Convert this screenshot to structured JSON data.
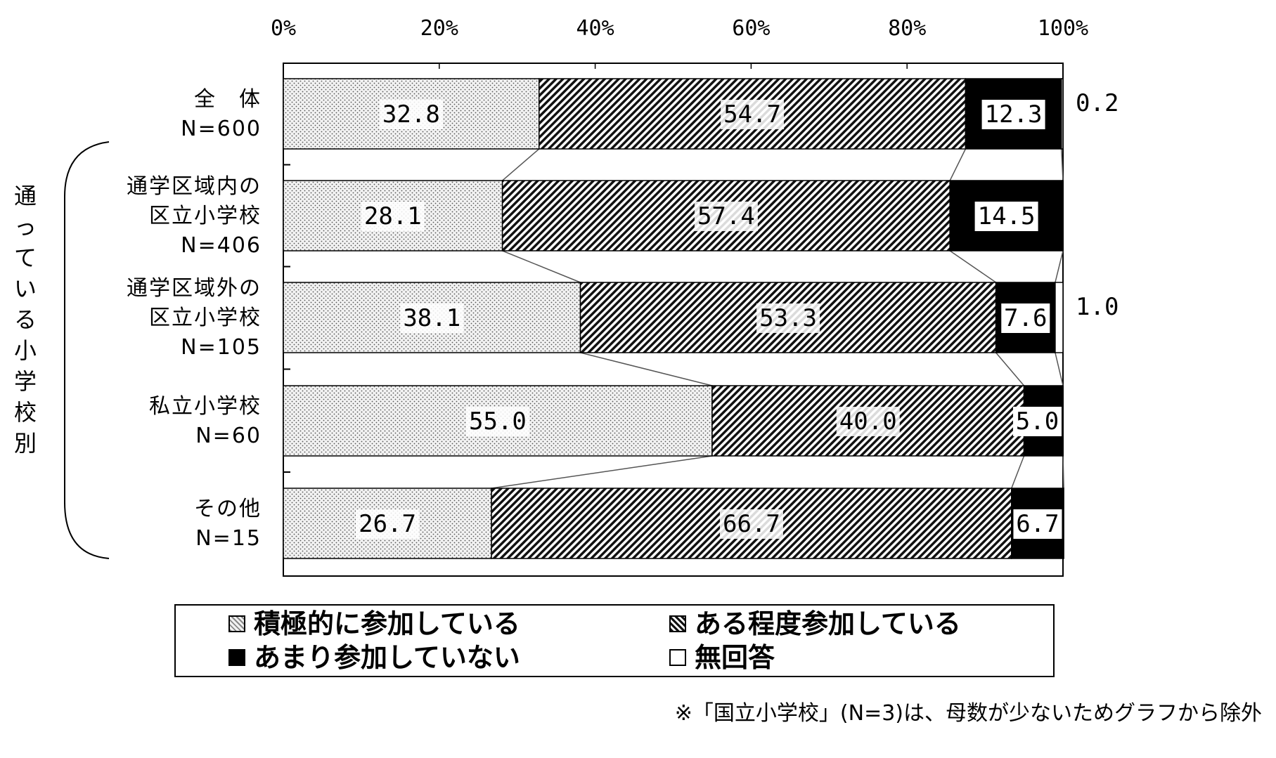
{
  "chart_data": {
    "type": "bar",
    "orientation": "horizontal-stacked-100",
    "x_ticks": [
      "0%",
      "20%",
      "40%",
      "60%",
      "80%",
      "100%"
    ],
    "xlim": [
      0,
      100
    ],
    "categories": [
      {
        "lines": [
          "全　体",
          "N=600"
        ]
      },
      {
        "lines": [
          "通学区域内の",
          "区立小学校",
          "N=406"
        ]
      },
      {
        "lines": [
          "通学区域外の",
          "区立小学校",
          "N=105"
        ]
      },
      {
        "lines": [
          "私立小学校",
          "N=60"
        ]
      },
      {
        "lines": [
          "その他",
          "N=15"
        ]
      }
    ],
    "group_label": "通っている小学校別",
    "series": [
      {
        "name": "積極的に参加している",
        "pattern": "dots",
        "values": [
          32.8,
          28.1,
          38.1,
          55.0,
          26.7
        ]
      },
      {
        "name": "ある程度参加している",
        "pattern": "hatch",
        "values": [
          54.7,
          57.4,
          53.3,
          40.0,
          66.7
        ]
      },
      {
        "name": "あまり参加していない",
        "pattern": "black",
        "values": [
          12.3,
          14.5,
          7.6,
          5.0,
          6.7
        ]
      },
      {
        "name": "無回答",
        "pattern": "white",
        "values": [
          0.2,
          0.0,
          1.0,
          0.0,
          0.0
        ]
      }
    ],
    "data_labels": [
      [
        "32.8",
        "54.7",
        "12.3",
        "0.2"
      ],
      [
        "28.1",
        "57.4",
        "14.5",
        ""
      ],
      [
        "38.1",
        "53.3",
        "7.6",
        "1.0"
      ],
      [
        "55.0",
        "40.0",
        "5.0",
        ""
      ],
      [
        "26.7",
        "66.7",
        "6.7",
        ""
      ]
    ],
    "legend": "bottom",
    "grid": false
  },
  "note": "※「国立小学校」(N=3)は、母数が少ないためグラフから除外"
}
